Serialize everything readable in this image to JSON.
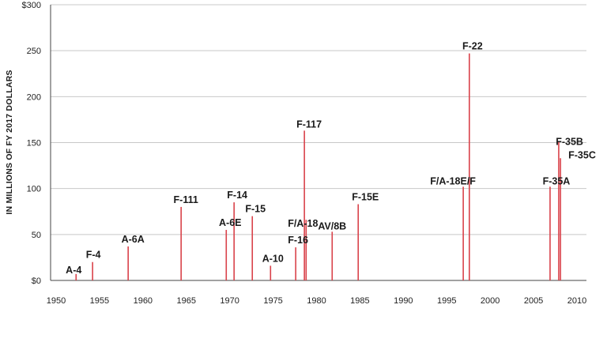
{
  "chart_data": {
    "type": "bar",
    "ylabel": "IN MILLIONS OF FY 2017 DOLLARS",
    "xlabel": "",
    "title": "",
    "xlim": [
      1950,
      2011
    ],
    "ylim": [
      0,
      300
    ],
    "x_ticks": [
      1950,
      1955,
      1960,
      1965,
      1970,
      1975,
      1980,
      1985,
      1990,
      1995,
      2000,
      2005,
      2010
    ],
    "y_ticks": [
      {
        "value": 0,
        "label": "$0"
      },
      {
        "value": 50,
        "label": "50"
      },
      {
        "value": 100,
        "label": "100"
      },
      {
        "value": 150,
        "label": "150"
      },
      {
        "value": 200,
        "label": "200"
      },
      {
        "value": 250,
        "label": "250"
      },
      {
        "value": 300,
        "label": "$300"
      }
    ],
    "grid": "horizontal",
    "colors": {
      "bar": "#d9424a",
      "grid": "#c8c8c8",
      "axis": "#444444"
    },
    "series": [
      {
        "values": [
          {
            "label": "A-4",
            "x": 1952.3,
            "y": 7
          },
          {
            "label": "F-4",
            "x": 1954.2,
            "y": 20
          },
          {
            "label": "A-6A",
            "x": 1958.3,
            "y": 37
          },
          {
            "label": "F-111",
            "x": 1964.4,
            "y": 80
          },
          {
            "label": "A-6E",
            "x": 1969.6,
            "y": 55
          },
          {
            "label": "F-14",
            "x": 1970.5,
            "y": 85
          },
          {
            "label": "F-15",
            "x": 1972.6,
            "y": 70
          },
          {
            "label": "A-10",
            "x": 1974.7,
            "y": 16
          },
          {
            "label": "F-16",
            "x": 1977.6,
            "y": 36
          },
          {
            "label": "F-117",
            "x": 1978.6,
            "y": 163
          },
          {
            "label": "F/A-18",
            "x": 1978.8,
            "y": 66
          },
          {
            "label": "AV/8B",
            "x": 1981.8,
            "y": 53
          },
          {
            "label": "F-15E",
            "x": 1984.8,
            "y": 83
          },
          {
            "label": "F/A-18E/F",
            "x": 1996.9,
            "y": 102
          },
          {
            "label": "F-22",
            "x": 1997.6,
            "y": 247
          },
          {
            "label": "F-35A",
            "x": 2006.9,
            "y": 102
          },
          {
            "label": "F-35B",
            "x": 2007.9,
            "y": 151
          },
          {
            "label": "F-35C",
            "x": 2008.1,
            "y": 133
          }
        ]
      }
    ]
  }
}
